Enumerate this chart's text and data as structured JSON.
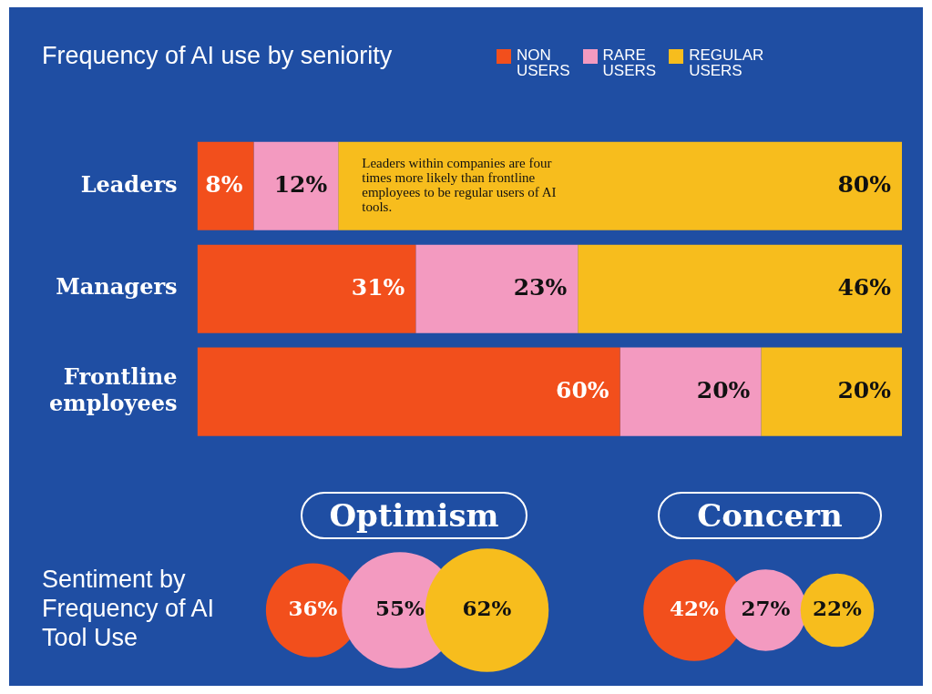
{
  "chart_data": [
    {
      "type": "bar",
      "orientation": "horizontal",
      "stacked": true,
      "title": "Frequency of AI use by seniority",
      "legend": "top right",
      "tick_labels": "y",
      "categories": [
        "Leaders",
        "Managers",
        "Frontline employees"
      ],
      "series": [
        {
          "name": "NON USERS",
          "color": "#f24f1c",
          "values": [
            8,
            31,
            60
          ],
          "value_labels": [
            "8%",
            "31%",
            "60%"
          ]
        },
        {
          "name": "RARE USERS",
          "color": "#f39ac0",
          "values": [
            12,
            23,
            20
          ],
          "value_labels": [
            "12%",
            "23%",
            "20%"
          ]
        },
        {
          "name": "REGULAR USERS",
          "color": "#f7bd1d",
          "values": [
            80,
            46,
            20
          ],
          "value_labels": [
            "80%",
            "46%",
            "20%"
          ]
        }
      ],
      "annotations": [
        {
          "text": "Leaders within companies are four times more likely than frontline employees to be regular users of AI tools.",
          "x": 20,
          "y": "Leaders"
        }
      ]
    },
    {
      "type": "other",
      "title": "Optimism",
      "categories": [
        null,
        null,
        null
      ],
      "values": [
        36,
        55,
        62
      ],
      "colors": [
        "#f24f1c",
        "#f39ac0",
        "#f7bd1d"
      ],
      "value_labels": [
        "36%",
        "55%",
        "62%"
      ],
      "annotations": [
        "Sentiment by Frequency of AI Tool Use"
      ]
    },
    {
      "type": "other",
      "title": "Concern",
      "categories": [
        null,
        null,
        null
      ],
      "values": [
        42,
        27,
        22
      ],
      "colors": [
        "#f24f1c",
        "#f39ac0",
        "#f7bd1d"
      ],
      "value_labels": [
        "42%",
        "27%",
        "22%"
      ]
    }
  ]
}
